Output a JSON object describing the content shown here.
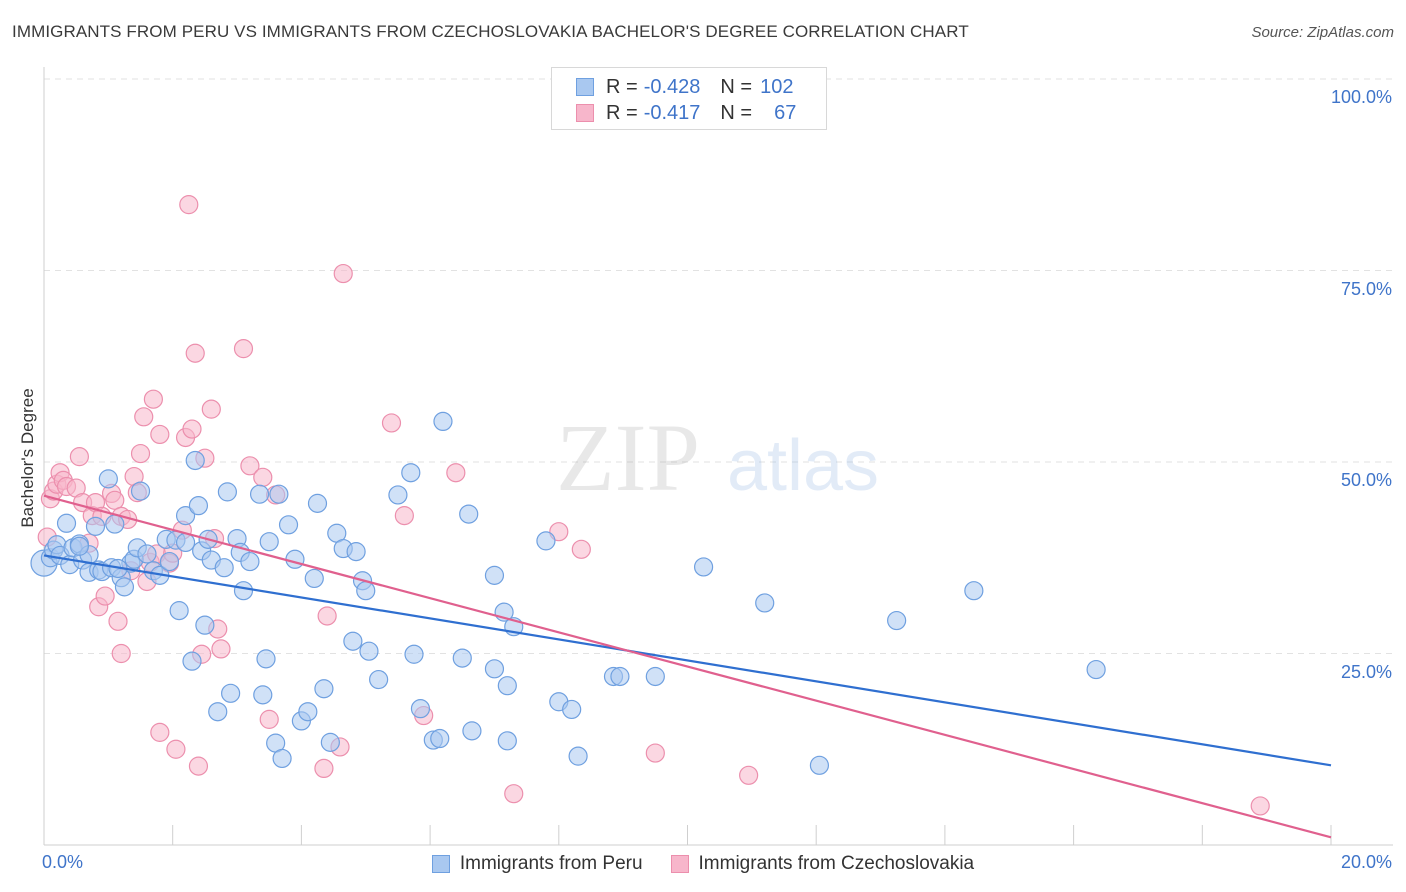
{
  "title": "IMMIGRANTS FROM PERU VS IMMIGRANTS FROM CZECHOSLOVAKIA BACHELOR'S DEGREE CORRELATION CHART",
  "source": "Source: ZipAtlas.com",
  "watermark": {
    "zip": "ZIP",
    "atlas": "atlas"
  },
  "colors": {
    "peru_fill": "#a9c8f0",
    "peru_stroke": "#6fa0e0",
    "peru_line": "#2f6fd0",
    "czech_fill": "#f7b6cb",
    "czech_stroke": "#ec8fad",
    "czech_line": "#e0608e",
    "tick_text": "#3f74c9",
    "grid": "#e2e2e2"
  },
  "legend_top": [
    {
      "r_label": "R =",
      "r_value": "-0.428",
      "n_label": "N =",
      "n_value": "102"
    },
    {
      "r_label": "R =",
      "r_value": "-0.417",
      "n_label": "N =",
      "n_value": "67"
    }
  ],
  "chart_data": {
    "type": "scatter",
    "title": "IMMIGRANTS FROM PERU VS IMMIGRANTS FROM CZECHOSLOVAKIA BACHELOR'S DEGREE CORRELATION CHART",
    "xlabel": "",
    "ylabel": "Bachelor's Degree",
    "xlim": [
      0,
      20
    ],
    "ylim": [
      0,
      100
    ],
    "x_tick_labels": [
      "0.0%",
      "20.0%"
    ],
    "y_ticks": [
      25,
      50,
      75,
      100
    ],
    "y_tick_labels": [
      "25.0%",
      "50.0%",
      "75.0%",
      "100.0%"
    ],
    "grid": true,
    "legend_placement": "top-center",
    "series": [
      {
        "name": "Immigrants from Peru",
        "trend": {
          "x": [
            0,
            20
          ],
          "y": [
            37.8,
            10.4
          ]
        },
        "points": [
          [
            0.0,
            36.8
          ],
          [
            0.1,
            37.5
          ],
          [
            0.15,
            38.5
          ],
          [
            0.2,
            39.2
          ],
          [
            0.25,
            37.8
          ],
          [
            0.35,
            42.0
          ],
          [
            0.4,
            36.6
          ],
          [
            0.45,
            38.8
          ],
          [
            0.55,
            39.3
          ],
          [
            0.6,
            37.2
          ],
          [
            0.7,
            37.9
          ],
          [
            0.7,
            35.6
          ],
          [
            0.8,
            41.6
          ],
          [
            0.85,
            35.9
          ],
          [
            0.9,
            35.7
          ],
          [
            1.0,
            47.8
          ],
          [
            1.05,
            36.2
          ],
          [
            1.1,
            41.9
          ],
          [
            1.2,
            34.9
          ],
          [
            1.25,
            33.7
          ],
          [
            1.35,
            36.8
          ],
          [
            1.4,
            37.3
          ],
          [
            1.45,
            38.8
          ],
          [
            1.5,
            46.2
          ],
          [
            1.6,
            38.0
          ],
          [
            1.7,
            35.8
          ],
          [
            1.8,
            35.2
          ],
          [
            1.9,
            39.9
          ],
          [
            1.95,
            37.0
          ],
          [
            2.05,
            39.8
          ],
          [
            2.1,
            30.6
          ],
          [
            2.2,
            39.5
          ],
          [
            2.2,
            43.0
          ],
          [
            2.3,
            24.0
          ],
          [
            2.35,
            50.2
          ],
          [
            2.4,
            44.3
          ],
          [
            2.45,
            38.4
          ],
          [
            2.5,
            28.7
          ],
          [
            2.55,
            39.9
          ],
          [
            2.6,
            37.2
          ],
          [
            2.7,
            17.4
          ],
          [
            2.8,
            36.2
          ],
          [
            2.85,
            46.1
          ],
          [
            2.9,
            19.8
          ],
          [
            3.0,
            40.0
          ],
          [
            3.05,
            38.2
          ],
          [
            3.1,
            33.2
          ],
          [
            3.2,
            37.0
          ],
          [
            3.35,
            45.8
          ],
          [
            3.4,
            19.6
          ],
          [
            3.45,
            24.3
          ],
          [
            3.5,
            39.6
          ],
          [
            3.6,
            13.3
          ],
          [
            3.65,
            45.8
          ],
          [
            3.7,
            11.3
          ],
          [
            3.8,
            41.8
          ],
          [
            3.9,
            37.3
          ],
          [
            4.0,
            16.2
          ],
          [
            4.1,
            17.4
          ],
          [
            4.2,
            34.8
          ],
          [
            4.25,
            44.6
          ],
          [
            4.35,
            20.4
          ],
          [
            4.45,
            13.4
          ],
          [
            4.55,
            40.7
          ],
          [
            4.65,
            38.7
          ],
          [
            4.8,
            26.6
          ],
          [
            4.85,
            38.3
          ],
          [
            4.95,
            34.5
          ],
          [
            5.0,
            33.2
          ],
          [
            5.05,
            25.3
          ],
          [
            5.2,
            21.6
          ],
          [
            5.5,
            45.7
          ],
          [
            5.7,
            48.6
          ],
          [
            5.75,
            24.9
          ],
          [
            5.85,
            17.8
          ],
          [
            6.05,
            13.7
          ],
          [
            6.15,
            13.9
          ],
          [
            6.2,
            55.3
          ],
          [
            6.5,
            24.4
          ],
          [
            6.6,
            43.2
          ],
          [
            6.65,
            14.9
          ],
          [
            7.0,
            35.2
          ],
          [
            7.0,
            23.0
          ],
          [
            7.15,
            30.4
          ],
          [
            7.2,
            13.6
          ],
          [
            7.2,
            20.8
          ],
          [
            7.3,
            28.5
          ],
          [
            7.8,
            39.7
          ],
          [
            8.0,
            18.7
          ],
          [
            8.2,
            17.7
          ],
          [
            8.3,
            11.6
          ],
          [
            8.85,
            22.0
          ],
          [
            8.95,
            22.0
          ],
          [
            9.5,
            22.0
          ],
          [
            10.25,
            36.3
          ],
          [
            11.2,
            31.6
          ],
          [
            12.05,
            10.4
          ],
          [
            13.25,
            29.3
          ],
          [
            14.45,
            33.2
          ],
          [
            16.35,
            22.9
          ],
          [
            0.55,
            39.0
          ],
          [
            1.15,
            36.1
          ]
        ]
      },
      {
        "name": "Immigrants from Czechoslovakia",
        "trend": {
          "x": [
            0,
            20
          ],
          "y": [
            45.6,
            1.0
          ]
        },
        "points": [
          [
            0.05,
            40.2
          ],
          [
            0.1,
            45.2
          ],
          [
            0.15,
            46.2
          ],
          [
            0.2,
            47.1
          ],
          [
            0.25,
            48.6
          ],
          [
            0.3,
            47.6
          ],
          [
            0.35,
            46.8
          ],
          [
            0.5,
            46.6
          ],
          [
            0.55,
            50.7
          ],
          [
            0.6,
            44.7
          ],
          [
            0.7,
            39.4
          ],
          [
            0.75,
            43.0
          ],
          [
            0.8,
            44.7
          ],
          [
            0.85,
            31.1
          ],
          [
            0.9,
            42.9
          ],
          [
            0.95,
            32.5
          ],
          [
            1.05,
            45.9
          ],
          [
            1.1,
            45.0
          ],
          [
            1.15,
            29.2
          ],
          [
            1.2,
            25.0
          ],
          [
            1.2,
            42.9
          ],
          [
            1.3,
            42.5
          ],
          [
            1.35,
            35.8
          ],
          [
            1.4,
            48.1
          ],
          [
            1.45,
            46.0
          ],
          [
            1.5,
            51.1
          ],
          [
            1.55,
            55.9
          ],
          [
            1.6,
            34.4
          ],
          [
            1.65,
            36.9
          ],
          [
            1.7,
            58.2
          ],
          [
            1.75,
            38.0
          ],
          [
            1.8,
            53.6
          ],
          [
            1.8,
            14.7
          ],
          [
            1.95,
            36.8
          ],
          [
            2.0,
            38.1
          ],
          [
            2.05,
            12.5
          ],
          [
            2.15,
            41.1
          ],
          [
            2.2,
            53.2
          ],
          [
            2.25,
            83.6
          ],
          [
            2.3,
            54.3
          ],
          [
            2.35,
            64.2
          ],
          [
            2.4,
            10.3
          ],
          [
            2.45,
            24.9
          ],
          [
            2.5,
            50.5
          ],
          [
            2.6,
            56.9
          ],
          [
            2.65,
            40.0
          ],
          [
            2.7,
            28.2
          ],
          [
            2.75,
            25.6
          ],
          [
            3.1,
            64.8
          ],
          [
            3.2,
            49.5
          ],
          [
            3.4,
            48.0
          ],
          [
            3.5,
            16.4
          ],
          [
            3.6,
            45.7
          ],
          [
            4.35,
            10.0
          ],
          [
            4.4,
            29.9
          ],
          [
            4.6,
            12.8
          ],
          [
            4.65,
            74.6
          ],
          [
            5.4,
            55.1
          ],
          [
            5.6,
            43.0
          ],
          [
            5.9,
            16.9
          ],
          [
            6.4,
            48.6
          ],
          [
            7.3,
            6.7
          ],
          [
            8.0,
            40.9
          ],
          [
            8.35,
            38.6
          ],
          [
            9.5,
            12.0
          ],
          [
            10.95,
            9.1
          ],
          [
            18.9,
            5.1
          ]
        ]
      }
    ]
  },
  "legend_bottom": [
    {
      "label": "Immigrants from Peru"
    },
    {
      "label": "Immigrants from Czechoslovakia"
    }
  ]
}
